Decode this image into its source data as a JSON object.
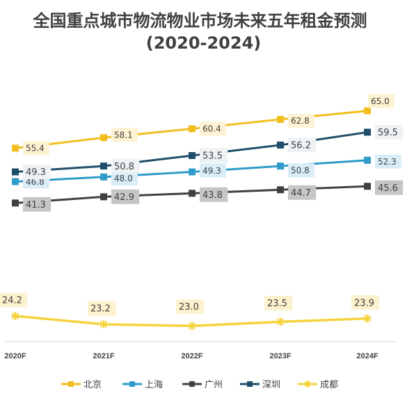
{
  "chart_data": {
    "type": "line",
    "title": "全国重点城市物流物业市场未来五年租金预测",
    "subtitle": "(2020-2024)",
    "categories": [
      "2020F",
      "2021F",
      "2022F",
      "2023F",
      "2024F"
    ],
    "xlabel": "",
    "ylabel": "",
    "grid": false,
    "legend_position": "bottom",
    "series": [
      {
        "name": "北京",
        "color": "#F2BE1E",
        "marker": "square",
        "label_bg": "#FDF3D2",
        "values": [
          "55.4",
          "58.1",
          "60.4",
          "62.8",
          "65.0"
        ]
      },
      {
        "name": "上海",
        "color": "#2E9BC9",
        "marker": "square",
        "label_bg": "#D9EDF7",
        "values": [
          "46.8",
          "48.0",
          "49.3",
          "50.8",
          "52.3"
        ]
      },
      {
        "name": "广州",
        "color": "#404040",
        "marker": "square",
        "label_bg": "#C6C6C6",
        "values": [
          "41.3",
          "42.9",
          "43.8",
          "44.7",
          "45.6"
        ]
      },
      {
        "name": "深圳",
        "color": "#1F4E6A",
        "marker": "square",
        "label_bg": "#EEF2F5",
        "values": [
          "49.3",
          "50.8",
          "53.5",
          "56.2",
          "59.5"
        ]
      },
      {
        "name": "成都",
        "color": "#F5D33E",
        "marker": "star",
        "label_bg": "#FDF2CE",
        "values": [
          "24.2",
          "23.2",
          "23.0",
          "23.5",
          "23.9"
        ]
      }
    ]
  }
}
